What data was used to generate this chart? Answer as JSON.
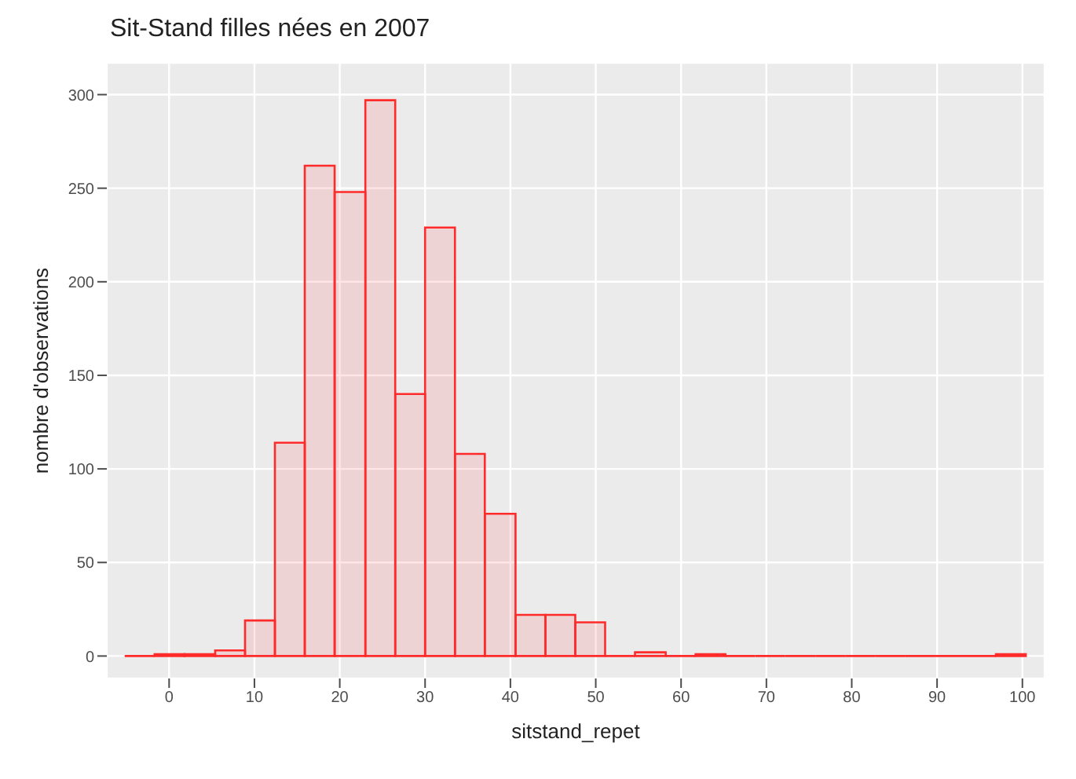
{
  "chart_data": {
    "type": "histogram",
    "title": "Sit-Stand filles nées en 2007",
    "xlabel": "sitstand_repet",
    "ylabel": "nombre d'observations",
    "bins": [
      -5.2,
      -1.7,
      1.8,
      5.4,
      8.9,
      12.4,
      15.9,
      19.4,
      23.0,
      26.5,
      30.0,
      33.5,
      37.0,
      40.6,
      44.1,
      47.6,
      51.1,
      54.6,
      58.2,
      61.7,
      65.2,
      68.7,
      72.2,
      75.8,
      79.3,
      82.8,
      86.3,
      89.8,
      93.4,
      96.9,
      100.4
    ],
    "values": [
      0,
      1,
      1,
      3,
      19,
      114,
      262,
      248,
      297,
      140,
      229,
      108,
      76,
      22,
      22,
      18,
      0,
      2,
      0,
      1,
      0,
      0,
      0,
      0,
      0,
      0,
      0,
      0,
      0,
      1
    ],
    "color": "#ff2a2a",
    "xlim": [
      -7.3,
      102.6
    ],
    "xticks": [
      0,
      10,
      20,
      30,
      40,
      50,
      60,
      70,
      80,
      90,
      100
    ],
    "ylim": [
      -12,
      317
    ],
    "yticks": [
      0,
      50,
      100,
      150,
      200,
      250,
      300
    ],
    "grid": true
  }
}
